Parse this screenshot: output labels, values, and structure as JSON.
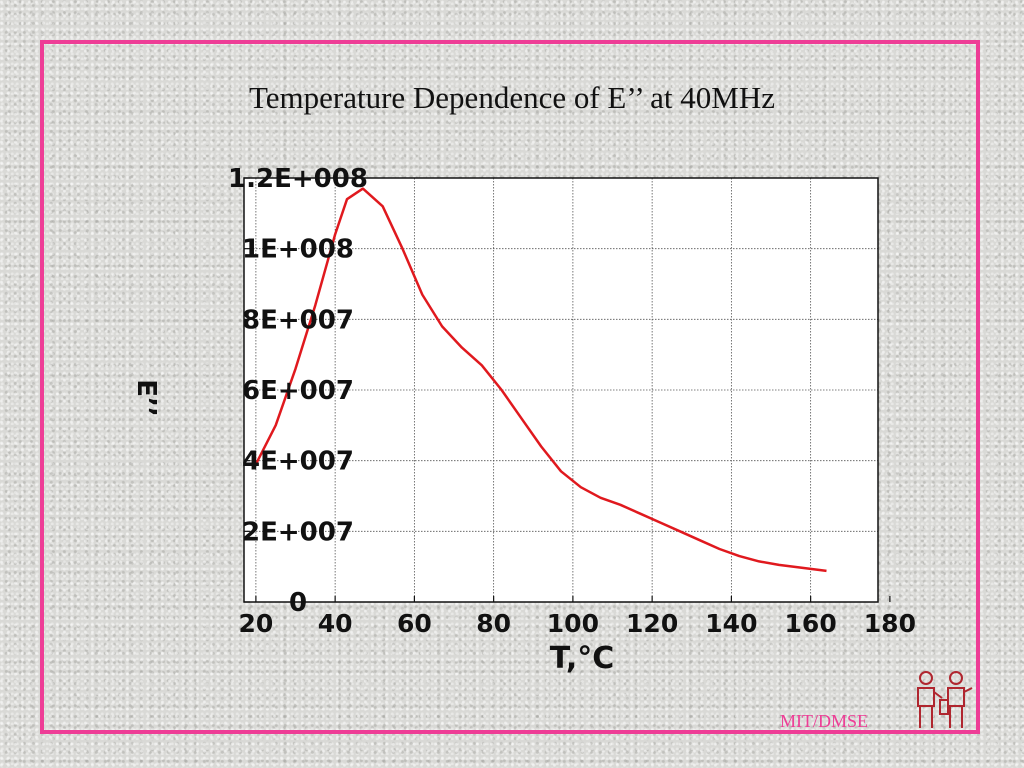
{
  "slide": {
    "title": "Temperature Dependence of E’’ at 40MHz",
    "footer": "MIT/DMSE"
  },
  "colors": {
    "frame": "#ee3d96",
    "line": "#e0191e",
    "footer": "#ee3d96"
  },
  "icons": {
    "logo": "two-figures-logo-icon"
  },
  "chart_data": {
    "type": "line",
    "title": "",
    "xlabel": "T,°C",
    "ylabel": "E’’",
    "xlim": [
      17,
      177
    ],
    "ylim": [
      0,
      120000000
    ],
    "grid": true,
    "x_ticks": [
      20,
      40,
      60,
      80,
      100,
      120,
      140,
      160,
      180
    ],
    "x_tick_labels": [
      "20",
      "40",
      "60",
      "80",
      "100",
      "120",
      "140",
      "160",
      "180"
    ],
    "y_ticks": [
      0,
      20000000,
      40000000,
      60000000,
      80000000,
      100000000,
      120000000
    ],
    "y_tick_labels": [
      "0",
      "2E+007",
      "4E+007",
      "6E+007",
      "8E+007",
      "1E+008",
      "1.2E+008"
    ],
    "series": [
      {
        "x": [
          20,
          25,
          30,
          35,
          40,
          43,
          47,
          52,
          57,
          62,
          67,
          72,
          77,
          82,
          87,
          92,
          97,
          102,
          107,
          112,
          117,
          122,
          127,
          132,
          137,
          142,
          147,
          152,
          157,
          164
        ],
        "y": [
          39000000,
          50000000,
          66000000,
          84000000,
          104000000,
          114000000,
          117000000,
          112000000,
          100000000,
          87000000,
          78000000,
          72000000,
          67000000,
          60000000,
          52000000,
          44000000,
          37000000,
          32500000,
          29500000,
          27500000,
          25000000,
          22500000,
          20000000,
          17500000,
          15000000,
          13000000,
          11500000,
          10500000,
          9800000,
          8800000
        ]
      }
    ]
  }
}
